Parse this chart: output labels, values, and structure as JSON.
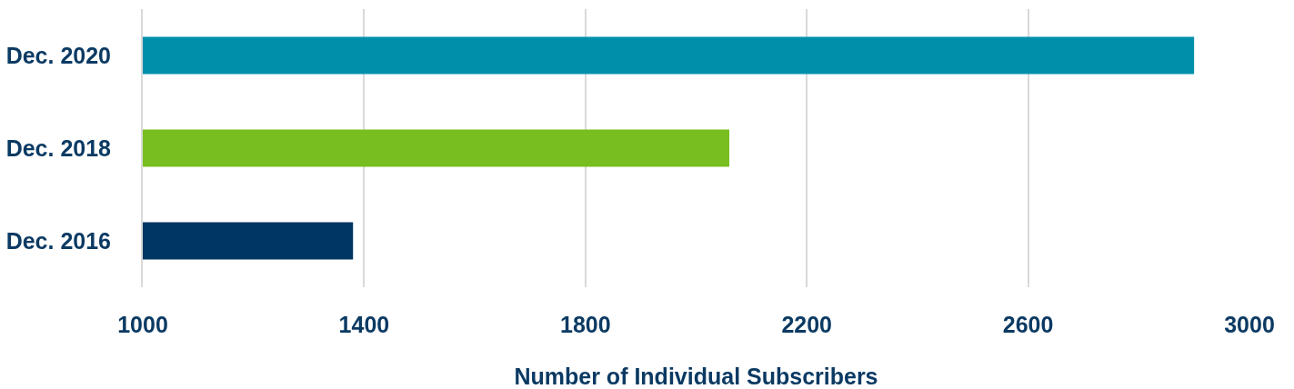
{
  "chart_data": {
    "type": "bar",
    "orientation": "horizontal",
    "categories": [
      "Dec. 2020",
      "Dec. 2018",
      "Dec. 2016"
    ],
    "values": [
      2900,
      2060,
      1380
    ],
    "colors": [
      "#008fab",
      "#78be20",
      "#003662"
    ],
    "xlabel": "Number of Individual Subscribers",
    "xlim": [
      1000,
      3000
    ],
    "xticks": [
      1000,
      1400,
      1800,
      2200,
      2600,
      3000
    ],
    "grid": "x"
  }
}
